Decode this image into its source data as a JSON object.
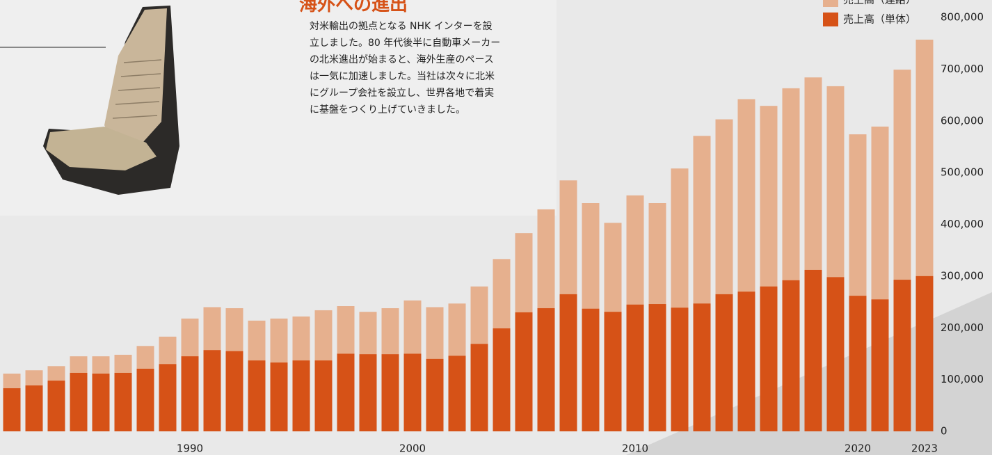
{
  "title": "海外への進出",
  "body": [
    "対米輸出の拠点となる NHK インターを設",
    "立しました。80 年代後半に自動車メーカー",
    "の北米進出が始まると、海外生産のペース",
    "は一気に加速しました。当社は次々に北米",
    "にグループ会社を設立し、世界各地で着実",
    "に基盤をつくり上げていきました。"
  ],
  "chart_data": {
    "type": "overlap_bar",
    "categories": [
      null,
      null,
      null,
      null,
      null,
      null,
      null,
      null,
      "1990",
      null,
      null,
      null,
      null,
      null,
      null,
      null,
      null,
      null,
      "2000",
      null,
      null,
      null,
      null,
      null,
      null,
      null,
      null,
      null,
      "2010",
      null,
      null,
      null,
      null,
      null,
      null,
      null,
      null,
      null,
      "2020",
      null,
      null,
      "2023"
    ],
    "series": [
      {
        "name": "売上高（連結）",
        "color": "#e6b08e",
        "values": [
          111600,
          118000,
          126000,
          145000,
          145000,
          148000,
          165000,
          183000,
          218000,
          240000,
          238000,
          214000,
          218000,
          222000,
          234000,
          242000,
          231000,
          238000,
          253000,
          240000,
          247000,
          280000,
          333000,
          383000,
          429000,
          485000,
          441000,
          403000,
          456000,
          441000,
          508000,
          571000,
          603000,
          642000,
          629000,
          663000,
          684000,
          667000,
          574000,
          589000,
          699000,
          757000
        ]
      },
      {
        "name": "売上高（単体）",
        "color": "#d65217",
        "values": [
          83300,
          88700,
          98000,
          113000,
          111600,
          113000,
          121000,
          130000,
          145000,
          157000,
          155000,
          137000,
          133000,
          137000,
          137000,
          150000,
          149000,
          149000,
          150000,
          140000,
          146000,
          169000,
          199000,
          230000,
          238000,
          265000,
          237000,
          231000,
          245000,
          246000,
          239000,
          247000,
          265000,
          270000,
          280000,
          292000,
          312000,
          298000,
          262000,
          255000,
          293000,
          300000
        ]
      }
    ],
    "ylim": [
      0,
      800000
    ],
    "yticks": [
      0,
      {
        "value": 100000,
        "label": "100,000"
      },
      {
        "value": 200000,
        "label": "200,000"
      },
      {
        "value": 300000,
        "label": "300,000"
      },
      {
        "value": 400000,
        "label": "400,000"
      },
      {
        "value": 500000,
        "label": "500,000"
      },
      {
        "value": 600000,
        "label": "600,000"
      },
      {
        "value": 700000,
        "label": "700,000"
      },
      {
        "value": 800000,
        "label": "800,000"
      }
    ]
  }
}
